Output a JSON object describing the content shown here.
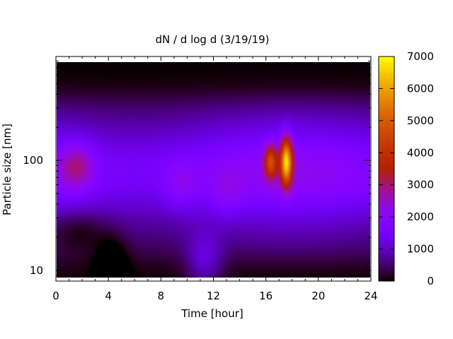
{
  "chart_data": {
    "type": "heatmap",
    "title": "dN / d log d (3/19/19)",
    "xlabel": "Time [hour]",
    "ylabel": "Particle size [nm]",
    "xlim": [
      0,
      24
    ],
    "ylim": [
      8,
      880
    ],
    "y_scale": "log",
    "x_ticks": [
      0,
      4,
      8,
      12,
      16,
      20,
      24
    ],
    "x_tick_labels": [
      "0",
      "4",
      "8",
      "12",
      "16",
      "20",
      "24"
    ],
    "y_ticks": [
      10,
      100
    ],
    "y_tick_labels": [
      "10",
      "100"
    ],
    "colorbar": {
      "min": 0,
      "max": 7000,
      "ticks": [
        0,
        1000,
        2000,
        3000,
        4000,
        5000,
        6000,
        7000
      ],
      "tick_labels": [
        "0",
        "1000",
        "2000",
        "3000",
        "4000",
        "5000",
        "6000",
        "7000"
      ],
      "colormap": "gnuplot-pm3d-black-purple-red-yellow"
    },
    "features": [
      {
        "time": 1.5,
        "size": 90,
        "value": 2900
      },
      {
        "time": 16.4,
        "size": 100,
        "value": 4300
      },
      {
        "time": 17.6,
        "size": 100,
        "value": 6300
      },
      {
        "time": 9.5,
        "size": 60,
        "value": 2200
      },
      {
        "time": 13.0,
        "size": 50,
        "value": 2100
      }
    ],
    "background_value_mid": 1800,
    "grid": false
  }
}
